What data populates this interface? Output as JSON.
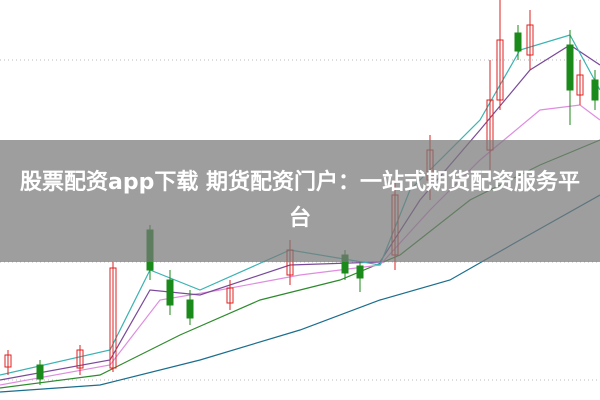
{
  "banner": {
    "title": "股票配资app下载 期货配资门户：一站式期货配资服务平台"
  }
}
